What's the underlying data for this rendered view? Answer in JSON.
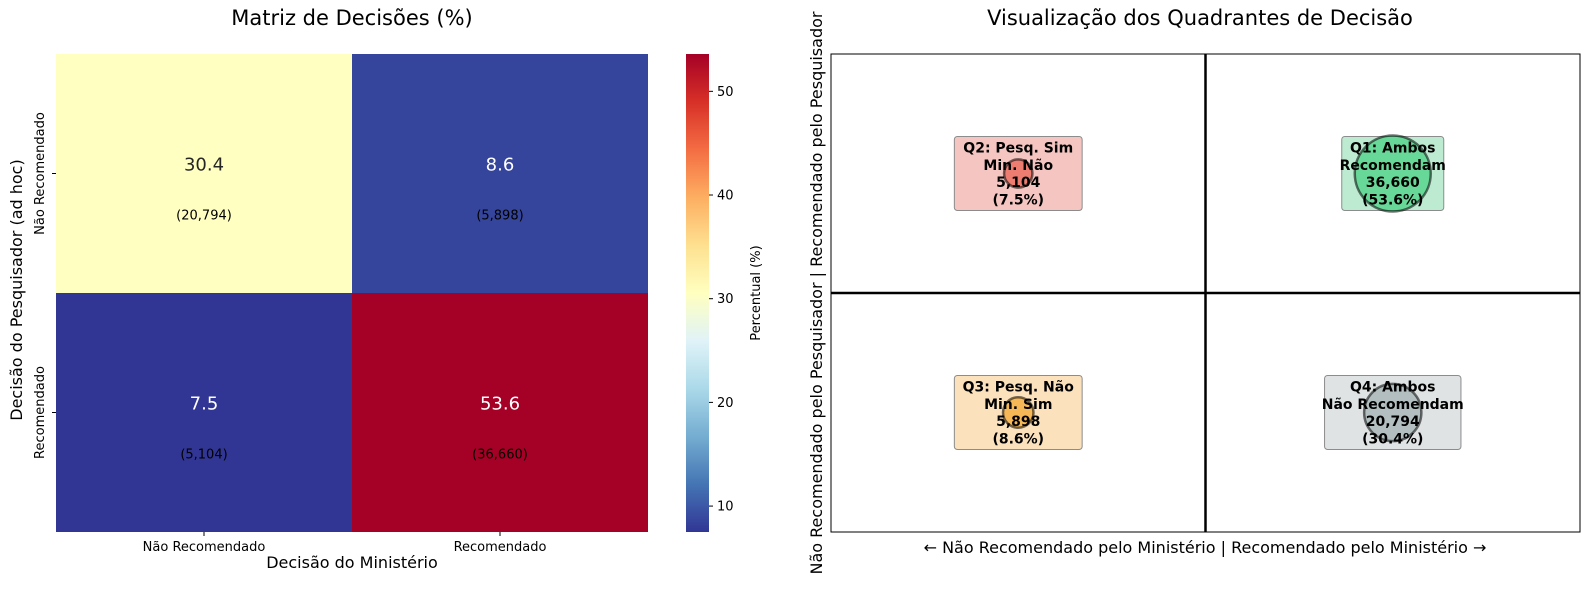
{
  "chart_data": [
    {
      "type": "heatmap",
      "title": "Matriz de Decisões (%)",
      "xlabel": "Decisão do Ministério",
      "ylabel": "Decisão do Pesquisador (ad hoc)",
      "x_categories": [
        "Não Recomendado",
        "Recomendado"
      ],
      "y_categories": [
        "Não Recomendado",
        "Recomendado"
      ],
      "values": [
        [
          30.4,
          8.6
        ],
        [
          7.5,
          53.6
        ]
      ],
      "value_labels": [
        [
          "30.4",
          "8.6"
        ],
        [
          "7.5",
          "53.6"
        ]
      ],
      "counts": [
        [
          "(20,794)",
          "(5,898)"
        ],
        [
          "(5,104)",
          "(36,660)"
        ]
      ],
      "colorbar": {
        "label": "Percentual (%)",
        "colormap": "RdYlBu_r",
        "range": [
          7.5,
          53.6
        ],
        "ticks": [
          10,
          20,
          30,
          40,
          50
        ],
        "tick_labels": [
          "10",
          "20",
          "30",
          "40",
          "50"
        ]
      }
    },
    {
      "type": "scatter",
      "title": "Visualização dos Quadrantes de Decisão",
      "xlabel": "← Não Recomendado pelo Ministério | Recomendado pelo Ministério →",
      "ylabel": "Não Recomendado pelo Pesquisador | Recomendado pelo Pesquisador",
      "xlim": [
        -1,
        1
      ],
      "ylim": [
        -1,
        1
      ],
      "quadrants": [
        {
          "id": "Q2",
          "x": -0.5,
          "y": 0.5,
          "count": 5104,
          "pct": 7.5,
          "color": "#e74c3c",
          "box_color": "#f5c6c1",
          "lines": [
            "Q2: Pesq. Sim",
            "Min. Não",
            "5,104",
            "(7.5%)"
          ]
        },
        {
          "id": "Q1",
          "x": 0.5,
          "y": 0.5,
          "count": 36660,
          "pct": 53.6,
          "color": "#2ecc71",
          "box_color": "#bdebd2",
          "lines": [
            "Q1: Ambos",
            "Recomendam",
            "36,660",
            "(53.6%)"
          ]
        },
        {
          "id": "Q3",
          "x": -0.5,
          "y": -0.5,
          "count": 5898,
          "pct": 8.6,
          "color": "#f39c12",
          "box_color": "#fbe1bc",
          "lines": [
            "Q3: Pesq. Não",
            "Min. Sim",
            "5,898",
            "(8.6%)"
          ]
        },
        {
          "id": "Q4",
          "x": 0.5,
          "y": -0.5,
          "count": 20794,
          "pct": 30.4,
          "color": "#95a5a6",
          "box_color": "#dfe3e4",
          "lines": [
            "Q4: Ambos",
            "Não Recomendam",
            "20,794",
            "(30.4%)"
          ]
        }
      ]
    }
  ]
}
